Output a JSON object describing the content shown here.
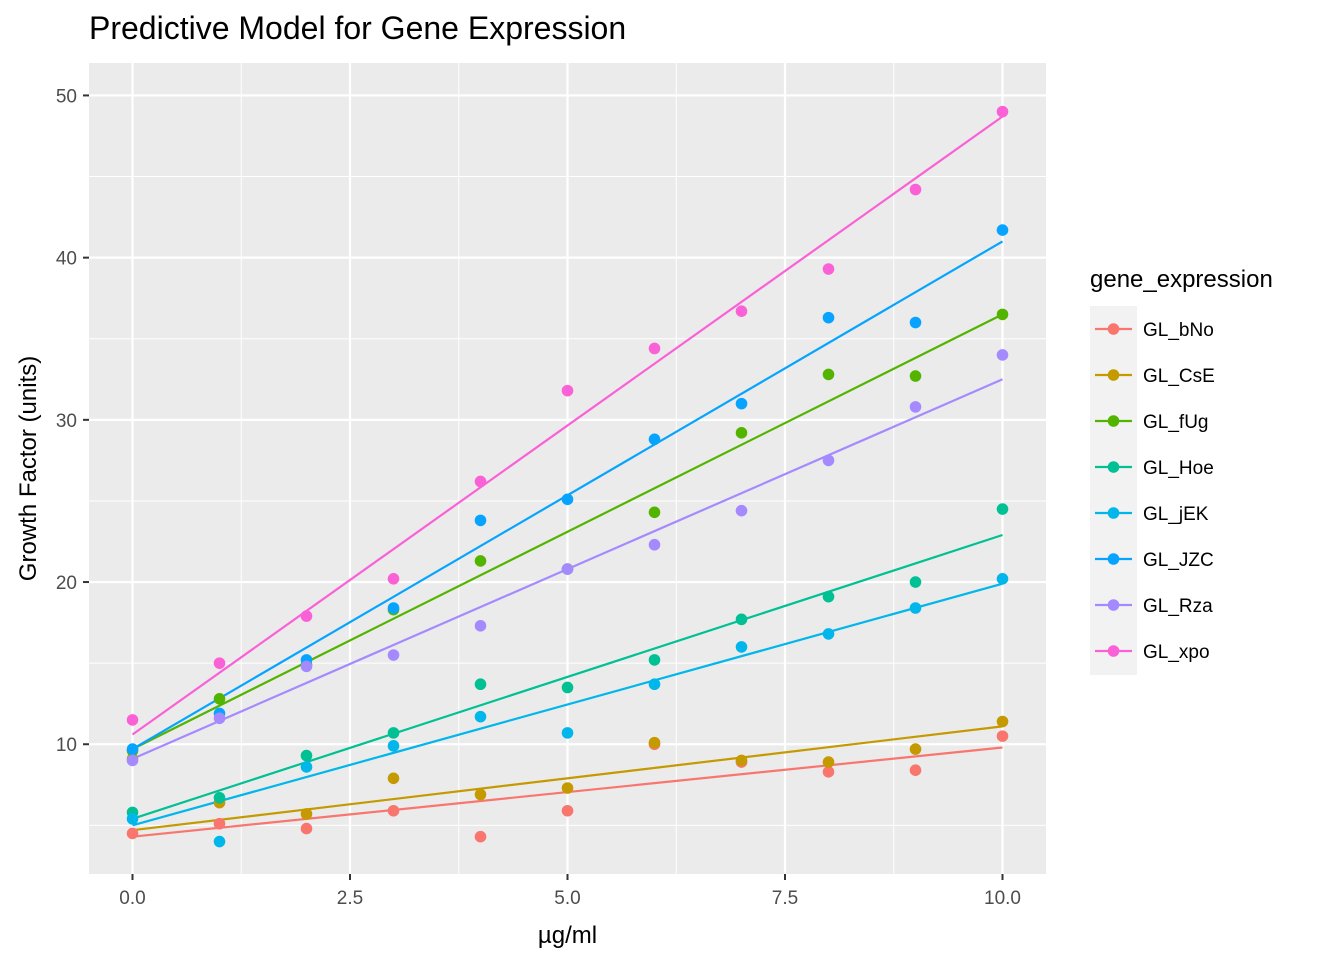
{
  "chart_data": {
    "type": "scatter",
    "title": "Predictive Model for Gene Expression",
    "xlabel": "µg/ml",
    "ylabel": "Growth Factor (units)",
    "xlim": [
      -0.5,
      10.5
    ],
    "ylim": [
      2.0,
      52.0
    ],
    "x_ticks": [
      {
        "value": 0.0,
        "label": "0.0"
      },
      {
        "value": 2.5,
        "label": "2.5"
      },
      {
        "value": 5.0,
        "label": "5.0"
      },
      {
        "value": 7.5,
        "label": "7.5"
      },
      {
        "value": 10.0,
        "label": "10.0"
      }
    ],
    "y_ticks": [
      {
        "value": 10,
        "label": "10"
      },
      {
        "value": 20,
        "label": "20"
      },
      {
        "value": 30,
        "label": "30"
      },
      {
        "value": 40,
        "label": "40"
      },
      {
        "value": 50,
        "label": "50"
      }
    ],
    "grid": true,
    "legend": {
      "title": "gene_expression",
      "position": "right"
    },
    "x": [
      0,
      1,
      2,
      3,
      4,
      5,
      6,
      7,
      8,
      9,
      10
    ],
    "series": [
      {
        "name": "GL_bNo",
        "color": "#F8766D",
        "values": [
          4.5,
          5.1,
          4.8,
          5.9,
          4.3,
          5.9,
          10.0,
          8.9,
          8.3,
          8.4,
          10.5
        ],
        "fit": [
          4.3,
          9.8
        ]
      },
      {
        "name": "GL_CsE",
        "color": "#C49A00",
        "values": [
          9.1,
          6.4,
          5.7,
          7.9,
          6.9,
          7.3,
          10.1,
          9.0,
          8.9,
          9.7,
          11.4
        ],
        "fit": [
          4.7,
          11.1
        ]
      },
      {
        "name": "GL_fUg",
        "color": "#53B400",
        "values": [
          9.6,
          12.8,
          14.9,
          18.3,
          21.3,
          20.8,
          24.3,
          29.2,
          32.8,
          32.7,
          36.5
        ],
        "fit": [
          9.7,
          36.5
        ]
      },
      {
        "name": "GL_Hoe",
        "color": "#00C094",
        "values": [
          5.8,
          6.7,
          9.3,
          10.7,
          13.7,
          13.5,
          15.2,
          17.7,
          19.1,
          20.0,
          24.5
        ],
        "fit": [
          5.4,
          22.9
        ]
      },
      {
        "name": "GL_jEK",
        "color": "#00B6EB",
        "values": [
          5.4,
          4.0,
          8.6,
          9.9,
          11.7,
          10.7,
          13.7,
          16.0,
          16.8,
          18.4,
          20.2
        ],
        "fit": [
          5.0,
          19.9
        ]
      },
      {
        "name": "GL_JZC",
        "color": "#06A4FF",
        "values": [
          9.7,
          11.9,
          15.2,
          18.4,
          23.8,
          25.1,
          28.8,
          31.0,
          36.3,
          36.0,
          41.7
        ],
        "fit": [
          9.7,
          41.0
        ]
      },
      {
        "name": "GL_Rza",
        "color": "#A58AFF",
        "values": [
          9.0,
          11.6,
          14.8,
          15.5,
          17.3,
          20.8,
          22.3,
          24.4,
          27.5,
          30.8,
          34.0
        ],
        "fit": [
          9.1,
          32.5
        ]
      },
      {
        "name": "GL_xpo",
        "color": "#FB61D7",
        "values": [
          11.5,
          15.0,
          17.9,
          20.2,
          26.2,
          31.8,
          34.4,
          36.7,
          39.3,
          44.2,
          49.0
        ],
        "fit": [
          10.6,
          48.7
        ]
      }
    ]
  }
}
